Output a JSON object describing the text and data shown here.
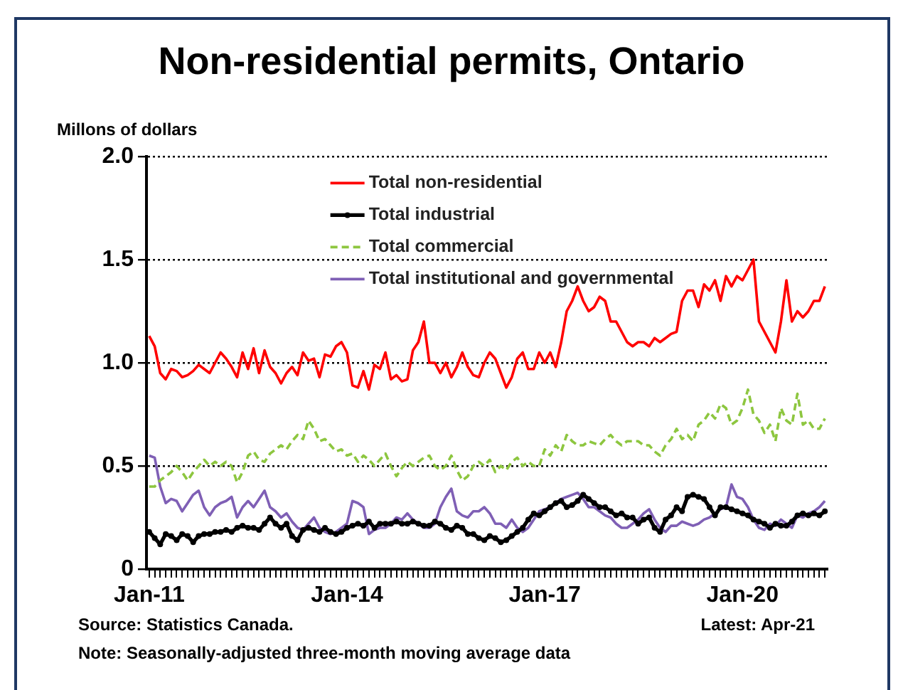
{
  "chart_data": {
    "type": "line",
    "title": "Non-residential permits, Ontario",
    "ylabel": "Millons of dollars",
    "annotations": [
      "Source: Statistics Canada.",
      "Latest: Apr-21",
      "Note: Seasonally-adjusted three-month moving average data"
    ],
    "categories": [
      "Jan-11",
      null,
      null,
      null,
      null,
      null,
      null,
      null,
      null,
      null,
      null,
      null,
      null,
      null,
      null,
      null,
      null,
      null,
      null,
      null,
      null,
      null,
      null,
      null,
      null,
      null,
      null,
      null,
      null,
      null,
      null,
      null,
      null,
      null,
      null,
      null,
      "Jan-14",
      null,
      null,
      null,
      null,
      null,
      null,
      null,
      null,
      null,
      null,
      null,
      null,
      null,
      null,
      null,
      null,
      null,
      null,
      null,
      null,
      null,
      null,
      null,
      null,
      null,
      null,
      null,
      null,
      null,
      null,
      null,
      null,
      null,
      null,
      null,
      "Jan-17",
      null,
      null,
      null,
      null,
      null,
      null,
      null,
      null,
      null,
      null,
      null,
      null,
      null,
      null,
      null,
      null,
      null,
      null,
      null,
      null,
      null,
      null,
      null,
      null,
      null,
      null,
      null,
      null,
      null,
      null,
      null,
      null,
      null,
      null,
      null,
      "Jan-20",
      null,
      null,
      null,
      null,
      null,
      null,
      null,
      null,
      null,
      null,
      null,
      null,
      null,
      null,
      null
    ],
    "series": [
      {
        "name": "Total non-residential",
        "color": "#ff0000",
        "marker": "none",
        "line_style": "solid",
        "values": [
          1.13,
          1.08,
          0.95,
          0.92,
          0.97,
          0.96,
          0.93,
          0.94,
          0.96,
          0.99,
          0.97,
          0.95,
          1.0,
          1.05,
          1.02,
          0.98,
          0.93,
          1.05,
          0.97,
          1.07,
          0.95,
          1.06,
          0.98,
          0.95,
          0.9,
          0.95,
          0.98,
          0.94,
          1.05,
          1.01,
          1.02,
          0.93,
          1.04,
          1.03,
          1.08,
          1.1,
          1.05,
          0.89,
          0.88,
          0.96,
          0.87,
          0.99,
          0.97,
          1.05,
          0.92,
          0.94,
          0.91,
          0.92,
          1.06,
          1.1,
          1.2,
          1.0,
          1.0,
          0.95,
          1.0,
          0.93,
          0.98,
          1.05,
          0.98,
          0.94,
          0.93,
          1.0,
          1.05,
          1.02,
          0.95,
          0.88,
          0.93,
          1.02,
          1.05,
          0.97,
          0.97,
          1.05,
          1.0,
          1.05,
          0.98,
          1.1,
          1.25,
          1.3,
          1.37,
          1.3,
          1.25,
          1.27,
          1.32,
          1.3,
          1.2,
          1.2,
          1.15,
          1.1,
          1.08,
          1.1,
          1.1,
          1.08,
          1.12,
          1.1,
          1.12,
          1.14,
          1.15,
          1.3,
          1.35,
          1.35,
          1.27,
          1.38,
          1.35,
          1.4,
          1.3,
          1.42,
          1.37,
          1.42,
          1.4,
          1.45,
          1.5,
          1.2,
          1.15,
          1.1,
          1.05,
          1.2,
          1.4,
          1.2,
          1.25,
          1.22,
          1.25,
          1.3,
          1.3,
          1.37
        ]
      },
      {
        "name": "Total industrial",
        "color": "#000000",
        "marker": "circle",
        "line_style": "solid",
        "values": [
          0.18,
          0.15,
          0.12,
          0.17,
          0.16,
          0.14,
          0.17,
          0.16,
          0.13,
          0.16,
          0.17,
          0.17,
          0.18,
          0.18,
          0.19,
          0.18,
          0.2,
          0.21,
          0.2,
          0.2,
          0.19,
          0.22,
          0.25,
          0.22,
          0.2,
          0.22,
          0.16,
          0.14,
          0.19,
          0.2,
          0.19,
          0.18,
          0.2,
          0.18,
          0.17,
          0.18,
          0.2,
          0.21,
          0.22,
          0.21,
          0.23,
          0.2,
          0.22,
          0.22,
          0.22,
          0.23,
          0.22,
          0.22,
          0.23,
          0.22,
          0.21,
          0.21,
          0.23,
          0.22,
          0.2,
          0.19,
          0.21,
          0.2,
          0.17,
          0.17,
          0.15,
          0.14,
          0.16,
          0.15,
          0.13,
          0.14,
          0.16,
          0.18,
          0.2,
          0.24,
          0.27,
          0.26,
          0.28,
          0.3,
          0.32,
          0.33,
          0.3,
          0.31,
          0.33,
          0.36,
          0.34,
          0.32,
          0.3,
          0.3,
          0.28,
          0.26,
          0.27,
          0.25,
          0.25,
          0.22,
          0.24,
          0.25,
          0.2,
          0.18,
          0.24,
          0.26,
          0.3,
          0.28,
          0.35,
          0.36,
          0.35,
          0.34,
          0.3,
          0.26,
          0.3,
          0.3,
          0.29,
          0.28,
          0.27,
          0.26,
          0.24,
          0.23,
          0.22,
          0.2,
          0.22,
          0.21,
          0.21,
          0.23,
          0.26,
          0.27,
          0.26,
          0.27,
          0.26,
          0.28
        ]
      },
      {
        "name": "Total commercial",
        "color": "#8dc63f",
        "marker": "none",
        "line_style": "dashed",
        "values": [
          0.4,
          0.4,
          0.43,
          0.45,
          0.47,
          0.5,
          0.47,
          0.43,
          0.47,
          0.5,
          0.53,
          0.5,
          0.52,
          0.5,
          0.52,
          0.5,
          0.42,
          0.47,
          0.55,
          0.57,
          0.53,
          0.52,
          0.56,
          0.58,
          0.6,
          0.58,
          0.62,
          0.65,
          0.63,
          0.72,
          0.68,
          0.62,
          0.63,
          0.6,
          0.57,
          0.58,
          0.55,
          0.56,
          0.52,
          0.55,
          0.53,
          0.5,
          0.53,
          0.56,
          0.5,
          0.45,
          0.49,
          0.52,
          0.5,
          0.52,
          0.54,
          0.55,
          0.5,
          0.48,
          0.5,
          0.55,
          0.48,
          0.43,
          0.45,
          0.5,
          0.52,
          0.5,
          0.53,
          0.47,
          0.5,
          0.48,
          0.52,
          0.54,
          0.5,
          0.52,
          0.5,
          0.5,
          0.58,
          0.55,
          0.6,
          0.57,
          0.65,
          0.62,
          0.6,
          0.6,
          0.62,
          0.61,
          0.6,
          0.63,
          0.65,
          0.62,
          0.6,
          0.62,
          0.62,
          0.62,
          0.6,
          0.6,
          0.57,
          0.55,
          0.6,
          0.63,
          0.68,
          0.63,
          0.65,
          0.62,
          0.7,
          0.72,
          0.76,
          0.73,
          0.8,
          0.78,
          0.7,
          0.72,
          0.78,
          0.87,
          0.75,
          0.72,
          0.66,
          0.7,
          0.62,
          0.78,
          0.72,
          0.7,
          0.85,
          0.7,
          0.72,
          0.68,
          0.68,
          0.73
        ]
      },
      {
        "name": "Total institutional and governmental",
        "color": "#7f5fb5",
        "marker": "none",
        "line_style": "solid",
        "values": [
          0.55,
          0.54,
          0.4,
          0.32,
          0.34,
          0.33,
          0.28,
          0.32,
          0.36,
          0.38,
          0.3,
          0.26,
          0.3,
          0.32,
          0.33,
          0.35,
          0.25,
          0.3,
          0.33,
          0.3,
          0.34,
          0.38,
          0.3,
          0.28,
          0.25,
          0.27,
          0.23,
          0.2,
          0.19,
          0.22,
          0.25,
          0.2,
          0.18,
          0.17,
          0.18,
          0.2,
          0.22,
          0.33,
          0.32,
          0.3,
          0.17,
          0.19,
          0.2,
          0.2,
          0.22,
          0.25,
          0.24,
          0.27,
          0.24,
          0.22,
          0.2,
          0.2,
          0.22,
          0.3,
          0.35,
          0.39,
          0.28,
          0.26,
          0.25,
          0.28,
          0.28,
          0.3,
          0.27,
          0.22,
          0.22,
          0.2,
          0.24,
          0.2,
          0.18,
          0.2,
          0.24,
          0.28,
          0.29,
          0.3,
          0.32,
          0.34,
          0.35,
          0.36,
          0.37,
          0.34,
          0.3,
          0.3,
          0.28,
          0.26,
          0.25,
          0.22,
          0.2,
          0.2,
          0.22,
          0.24,
          0.27,
          0.29,
          0.24,
          0.2,
          0.18,
          0.21,
          0.21,
          0.23,
          0.22,
          0.21,
          0.22,
          0.24,
          0.25,
          0.27,
          0.29,
          0.3,
          0.41,
          0.35,
          0.34,
          0.3,
          0.24,
          0.2,
          0.19,
          0.22,
          0.21,
          0.24,
          0.22,
          0.2,
          0.26,
          0.25,
          0.27,
          0.28,
          0.3,
          0.33
        ]
      }
    ],
    "ylim": [
      0,
      2
    ],
    "yticks": [
      0,
      {
        "value": 0.5,
        "label": "0.5"
      },
      {
        "value": 1,
        "label": "1.0"
      },
      {
        "value": 1.5,
        "label": "1.5"
      },
      {
        "value": 2,
        "label": "2.0"
      }
    ],
    "grid": "y",
    "legend": "top"
  }
}
